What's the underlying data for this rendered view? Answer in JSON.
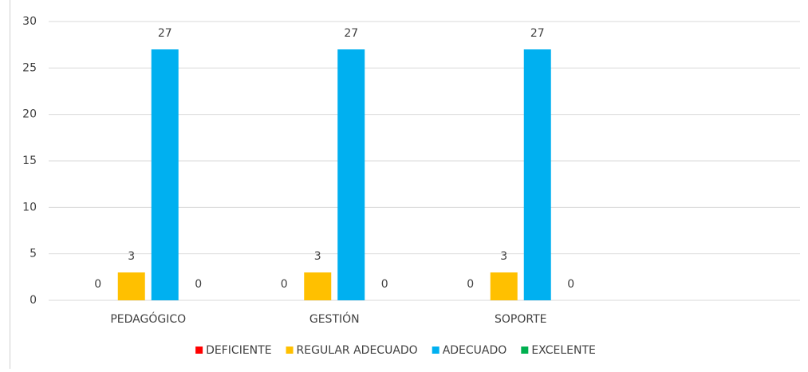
{
  "chart_data": {
    "type": "bar",
    "categories": [
      "PEDAGÓGICO",
      "GESTIÓN",
      "SOPORTE",
      null
    ],
    "series": [
      {
        "name": "DEFICIENTE",
        "color": "#ff0000",
        "values": [
          0,
          0,
          0,
          null
        ]
      },
      {
        "name": "REGULAR ADECUADO",
        "color": "#ffc000",
        "values": [
          3,
          3,
          3,
          null
        ]
      },
      {
        "name": "ADECUADO",
        "color": "#00b0f0",
        "values": [
          27,
          27,
          27,
          null
        ]
      },
      {
        "name": "EXCELENTE",
        "color": "#00b050",
        "values": [
          0,
          0,
          0,
          null
        ]
      }
    ],
    "ylim": [
      0,
      30
    ],
    "yticks": [
      0,
      5,
      10,
      15,
      20,
      25,
      30
    ],
    "grid": true,
    "legend": "bottom"
  }
}
